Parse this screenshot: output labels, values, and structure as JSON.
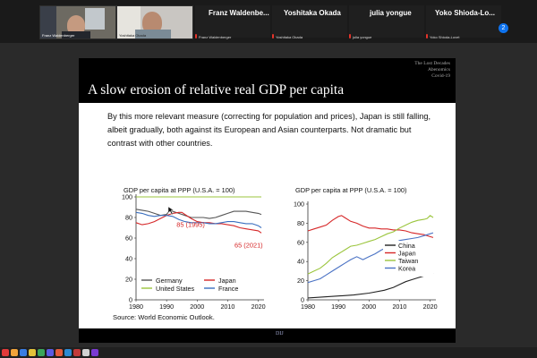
{
  "participants": [
    {
      "name": "Franz  Waldenbe...",
      "label": "Franz Waldenberger"
    },
    {
      "name": "Yoshitaka Okada",
      "label": "Yoshitaka Okada"
    },
    {
      "name": "julia yongue",
      "label": "julia yongue"
    },
    {
      "name": "Yoko  Shioda-Lo...",
      "label": "Yoko Shioda-Lovet"
    }
  ],
  "participants_count": "2",
  "slide": {
    "nav": [
      "The Lost Decades",
      "Abenomics",
      "Covid-19"
    ],
    "title": "A slow erosion of relative real GDP per capita",
    "body": "By this more relevant measure (correcting for population and prices), Japan is still falling, albeit gradually, both against its European and Asian counterparts. Not dramatic but contrast with other countries.",
    "source": "Source: World Economic Outlook.",
    "footer": "DIJ"
  },
  "chart_data": [
    {
      "type": "line",
      "title": "GDP per capita at PPP (U.S.A. = 100)",
      "xlim": [
        1980,
        2021
      ],
      "ylim": [
        0,
        100
      ],
      "xticks": [
        1980,
        1990,
        2000,
        2010,
        2020
      ],
      "yticks": [
        0,
        20,
        40,
        60,
        80,
        100
      ],
      "grid": false,
      "legend_position": "bottom",
      "annotations": [
        {
          "text": "85 (1995)",
          "x": 1995,
          "y": 85
        },
        {
          "text": "65 (2021)",
          "x": 2021,
          "y": 65
        }
      ],
      "series": [
        {
          "name": "Germany",
          "color": "#555555",
          "x": [
            1980,
            1982,
            1984,
            1986,
            1988,
            1990,
            1991,
            1992,
            1994,
            1996,
            1998,
            2000,
            2002,
            2004,
            2006,
            2008,
            2010,
            2012,
            2014,
            2016,
            2018,
            2020,
            2021
          ],
          "y": [
            88,
            87,
            86,
            84,
            82,
            83,
            87,
            86,
            84,
            82,
            80,
            80,
            80,
            79,
            80,
            82,
            84,
            86,
            86,
            86,
            85,
            84,
            83
          ]
        },
        {
          "name": "Japan",
          "color": "#d62728",
          "x": [
            1980,
            1982,
            1984,
            1986,
            1988,
            1990,
            1992,
            1994,
            1995,
            1996,
            1998,
            2000,
            2002,
            2004,
            2006,
            2008,
            2010,
            2012,
            2014,
            2016,
            2018,
            2020,
            2021
          ],
          "y": [
            75,
            73,
            74,
            76,
            79,
            82,
            84,
            85,
            85,
            83,
            79,
            76,
            75,
            75,
            74,
            74,
            73,
            72,
            70,
            69,
            68,
            67,
            65
          ]
        },
        {
          "name": "United States",
          "color": "#9bc53d",
          "x": [
            1980,
            2021
          ],
          "y": [
            100,
            100
          ]
        },
        {
          "name": "France",
          "color": "#3a6fbf",
          "x": [
            1980,
            1982,
            1984,
            1986,
            1988,
            1990,
            1992,
            1994,
            1996,
            1998,
            2000,
            2002,
            2004,
            2006,
            2008,
            2010,
            2012,
            2014,
            2016,
            2018,
            2020,
            2021
          ],
          "y": [
            85,
            84,
            82,
            81,
            82,
            82,
            81,
            78,
            76,
            75,
            75,
            75,
            74,
            74,
            75,
            76,
            76,
            75,
            74,
            74,
            72,
            70
          ]
        }
      ]
    },
    {
      "type": "line",
      "title": "GDP per capita at PPP (U.S.A. = 100)",
      "xlim": [
        1980,
        2021
      ],
      "ylim": [
        0,
        100
      ],
      "xticks": [
        1980,
        1990,
        2000,
        2010,
        2020
      ],
      "yticks": [
        0,
        20,
        40,
        60,
        80,
        100
      ],
      "grid": false,
      "legend_position": "right",
      "series": [
        {
          "name": "China",
          "color": "#222222",
          "x": [
            1980,
            1985,
            1990,
            1995,
            2000,
            2005,
            2008,
            2010,
            2012,
            2014,
            2016,
            2018,
            2020,
            2021
          ],
          "y": [
            2,
            3,
            4,
            5,
            7,
            10,
            13,
            16,
            19,
            21,
            23,
            25,
            27,
            28
          ]
        },
        {
          "name": "Japan",
          "color": "#d62728",
          "x": [
            1980,
            1982,
            1984,
            1986,
            1988,
            1990,
            1991,
            1992,
            1994,
            1996,
            1998,
            2000,
            2002,
            2004,
            2006,
            2008,
            2010,
            2012,
            2014,
            2016,
            2018,
            2020,
            2021
          ],
          "y": [
            72,
            74,
            76,
            78,
            83,
            87,
            88,
            86,
            82,
            80,
            77,
            75,
            75,
            74,
            74,
            73,
            73,
            72,
            70,
            69,
            68,
            66,
            65
          ]
        },
        {
          "name": "Taiwan",
          "color": "#9bc53d",
          "x": [
            1980,
            1982,
            1984,
            1986,
            1988,
            1990,
            1992,
            1994,
            1996,
            1998,
            2000,
            2002,
            2004,
            2006,
            2008,
            2010,
            2012,
            2014,
            2016,
            2018,
            2019,
            2020,
            2021
          ],
          "y": [
            27,
            30,
            33,
            38,
            44,
            48,
            52,
            56,
            57,
            59,
            61,
            63,
            66,
            69,
            71,
            75,
            78,
            81,
            83,
            84,
            85,
            88,
            86
          ]
        },
        {
          "name": "Korea",
          "color": "#4a72c4",
          "x": [
            1980,
            1982,
            1984,
            1986,
            1988,
            1990,
            1992,
            1994,
            1996,
            1998,
            2000,
            2002,
            2004,
            2006,
            2008,
            2010,
            2012,
            2014,
            2016,
            2018,
            2020,
            2021
          ],
          "y": [
            18,
            20,
            22,
            26,
            30,
            34,
            38,
            42,
            45,
            42,
            45,
            48,
            52,
            55,
            58,
            62,
            63,
            64,
            65,
            67,
            69,
            70
          ]
        }
      ]
    }
  ]
}
